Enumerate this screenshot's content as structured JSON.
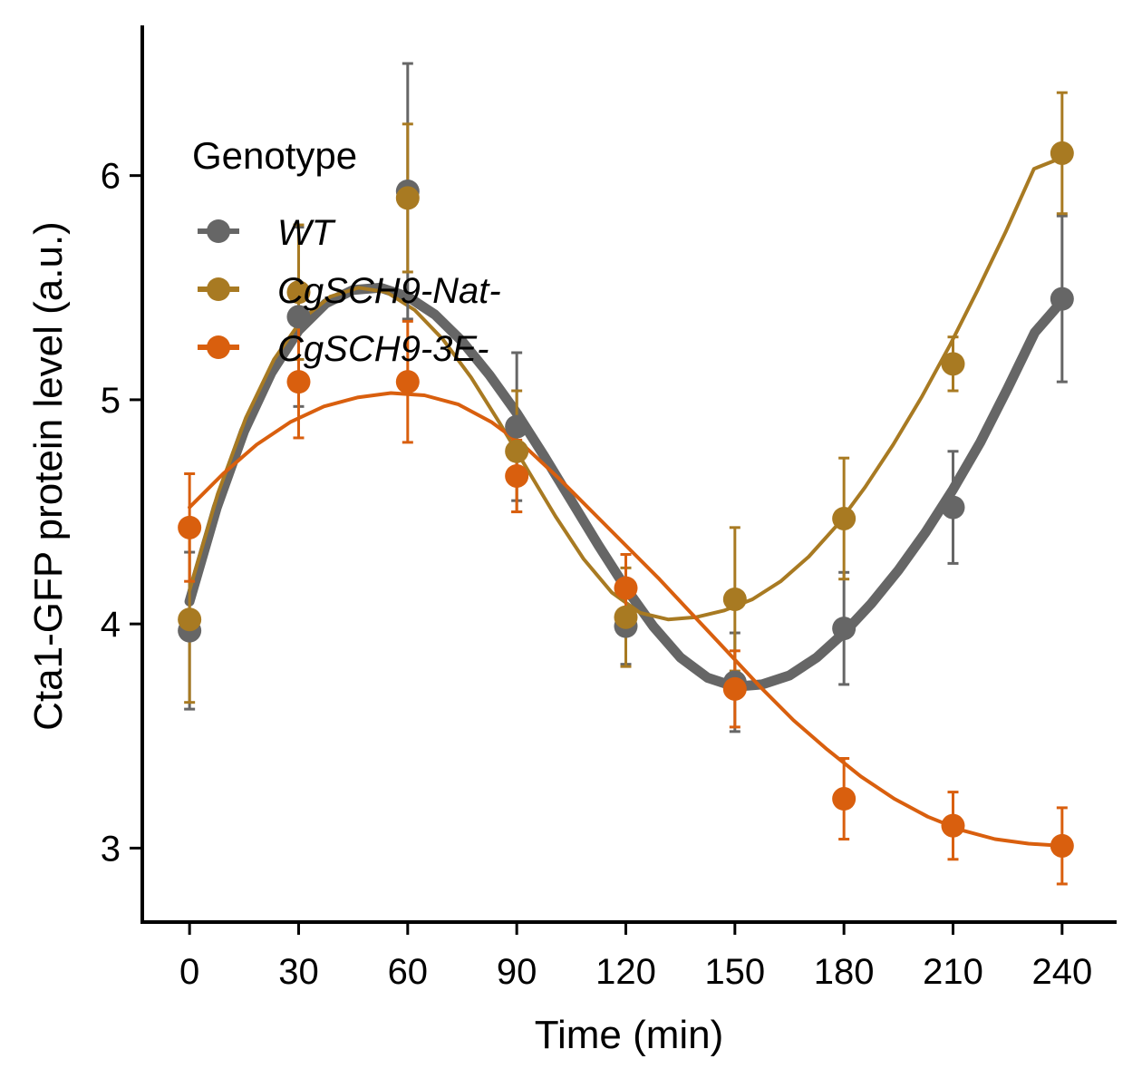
{
  "chart_data": {
    "type": "line",
    "xlabel": "Time (min)",
    "ylabel": "Cta1-GFP protein level (a.u.)",
    "x": [
      0,
      30,
      60,
      90,
      120,
      150,
      180,
      210,
      240
    ],
    "x_ticks": [
      "0",
      "30",
      "60",
      "90",
      "120",
      "150",
      "180",
      "210",
      "240"
    ],
    "y_ticks": [
      "3",
      "4",
      "5",
      "6"
    ],
    "xlim": [
      -13,
      255
    ],
    "ylim": [
      2.67,
      6.67
    ],
    "grid": false,
    "legend": {
      "title": "Genotype",
      "placement": "top-left"
    },
    "series": [
      {
        "name": "WT",
        "color": "#666666",
        "y": [
          3.97,
          5.37,
          5.93,
          4.88,
          3.99,
          3.74,
          3.98,
          4.52,
          5.45
        ],
        "err": [
          0.35,
          0.4,
          0.57,
          0.33,
          0.17,
          0.22,
          0.25,
          0.25,
          0.37
        ],
        "fit": [
          4.1,
          4.52,
          4.86,
          5.12,
          5.31,
          5.43,
          5.49,
          5.5,
          5.46,
          5.38,
          5.26,
          5.11,
          4.94,
          4.75,
          4.55,
          4.35,
          4.16,
          3.99,
          3.85,
          3.76,
          3.72,
          3.73,
          3.77,
          3.85,
          3.96,
          4.09,
          4.24,
          4.41,
          4.6,
          4.81,
          5.05,
          5.3,
          5.44
        ]
      },
      {
        "name": "CgSCH9-Nat-",
        "color": "#A87A22",
        "y": [
          4.02,
          5.48,
          5.9,
          4.77,
          4.03,
          4.11,
          4.47,
          5.16,
          6.1
        ],
        "err": [
          0.37,
          0.3,
          0.33,
          0.27,
          0.22,
          0.32,
          0.27,
          0.12,
          0.27
        ],
        "fit": [
          4.15,
          4.58,
          4.92,
          5.18,
          5.36,
          5.46,
          5.5,
          5.48,
          5.4,
          5.27,
          5.1,
          4.9,
          4.69,
          4.48,
          4.29,
          4.14,
          4.05,
          4.02,
          4.03,
          4.06,
          4.11,
          4.19,
          4.3,
          4.44,
          4.61,
          4.8,
          5.01,
          5.24,
          5.49,
          5.75,
          6.03,
          6.08
        ]
      },
      {
        "name": "CgSCH9-3E-",
        "color": "#D95F0E",
        "y": [
          4.43,
          5.08,
          5.08,
          4.66,
          4.16,
          3.71,
          3.22,
          3.1,
          3.01
        ],
        "err": [
          0.24,
          0.25,
          0.27,
          0.16,
          0.15,
          0.17,
          0.18,
          0.15,
          0.17
        ],
        "fit": [
          4.52,
          4.67,
          4.8,
          4.9,
          4.97,
          5.01,
          5.03,
          5.02,
          4.98,
          4.9,
          4.79,
          4.65,
          4.5,
          4.35,
          4.2,
          4.04,
          3.88,
          3.72,
          3.57,
          3.44,
          3.32,
          3.22,
          3.14,
          3.08,
          3.04,
          3.02,
          3.01
        ]
      }
    ]
  }
}
